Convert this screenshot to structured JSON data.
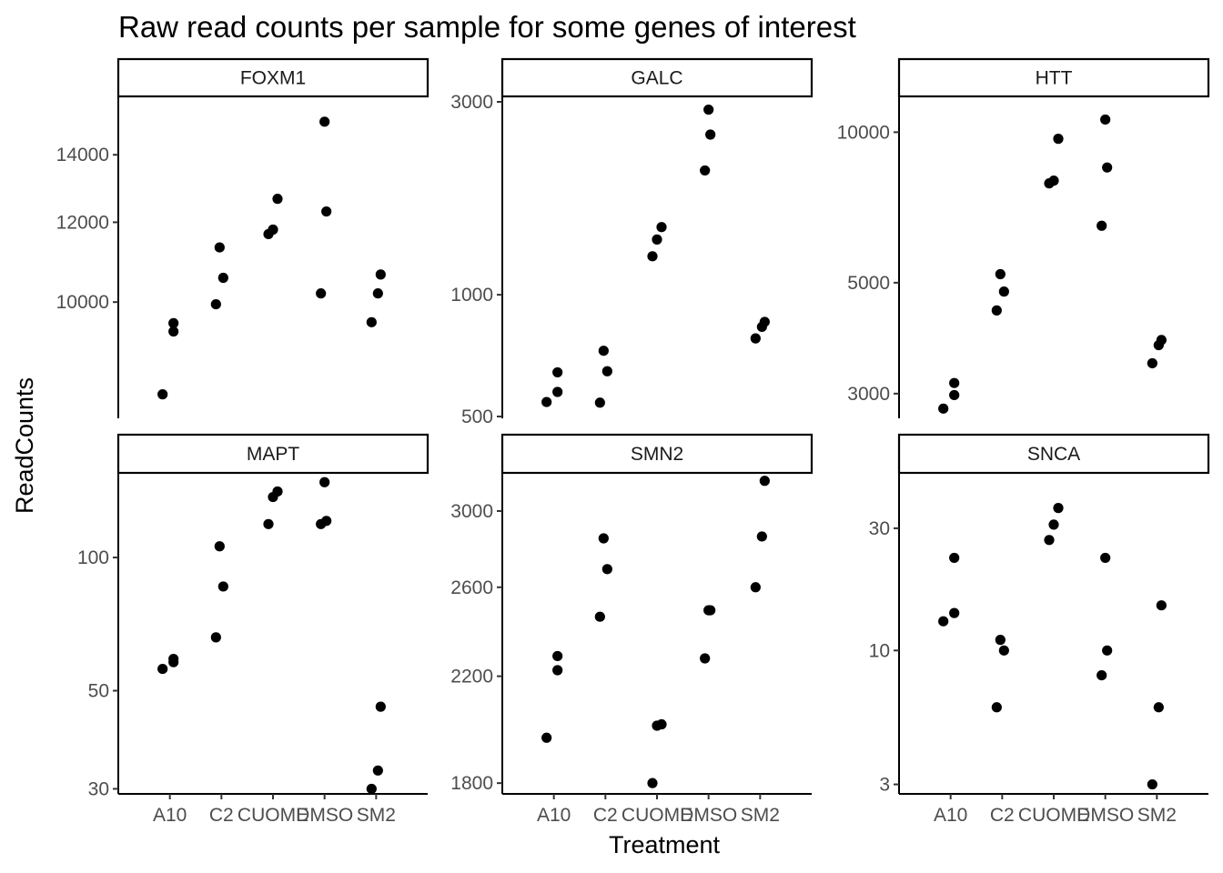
{
  "chart_data": {
    "type": "scatter",
    "title": "Raw read counts per sample for some genes of interest",
    "xlabel": "Treatment",
    "ylabel": "ReadCounts",
    "categories": [
      "A10",
      "C2",
      "CUOME",
      "DMSO",
      "SM2"
    ],
    "grid": false,
    "y_scale": "log",
    "point_color": "#000000",
    "panels": [
      {
        "gene": "FOXM1",
        "ylim": [
          7700,
          15800
        ],
        "yticks": [
          10000,
          12000,
          14000
        ],
        "ytick_labels": [
          "10000",
          "12000",
          "14000"
        ],
        "series": [
          {
            "category": "A10",
            "values": [
              8100,
              9350,
              9530
            ]
          },
          {
            "category": "C2",
            "values": [
              9950,
              10570,
              11330
            ]
          },
          {
            "category": "CUOME",
            "values": [
              11680,
              11800,
              12660
            ]
          },
          {
            "category": "DMSO",
            "values": [
              10200,
              12300,
              15100
            ]
          },
          {
            "category": "SM2",
            "values": [
              9550,
              10200,
              10650
            ]
          }
        ]
      },
      {
        "gene": "GALC",
        "ylim": [
          500,
          3000
        ],
        "yticks": [
          500,
          1000,
          3000
        ],
        "ytick_labels": [
          "500",
          "1000",
          "3000"
        ],
        "series": [
          {
            "category": "A10",
            "values": [
              543,
              575,
              643
            ]
          },
          {
            "category": "C2",
            "values": [
              541,
              647,
              727
            ]
          },
          {
            "category": "CUOME",
            "values": [
              1245,
              1370,
              1470
            ]
          },
          {
            "category": "DMSO",
            "values": [
              2030,
              2490,
              2870
            ]
          },
          {
            "category": "SM2",
            "values": [
              780,
              833,
              857
            ]
          }
        ]
      },
      {
        "gene": "HTT",
        "ylim": [
          2700,
          11500
        ],
        "yticks": [
          3000,
          5000,
          10000
        ],
        "ytick_labels": [
          "3000",
          "5000",
          "10000"
        ],
        "series": [
          {
            "category": "A10",
            "values": [
              2800,
              2980,
              3150
            ]
          },
          {
            "category": "C2",
            "values": [
              4400,
              4800,
              5200
            ]
          },
          {
            "category": "CUOME",
            "values": [
              7900,
              8000,
              9700
            ]
          },
          {
            "category": "DMSO",
            "values": [
              6500,
              8500,
              10600
            ]
          },
          {
            "category": "SM2",
            "values": [
              3450,
              3750,
              3840
            ]
          }
        ]
      },
      {
        "gene": "MAPT",
        "ylim": [
          29.5,
          151
        ],
        "yticks": [
          30,
          50,
          100
        ],
        "ytick_labels": [
          "30",
          "50",
          "100"
        ],
        "series": [
          {
            "category": "A10",
            "values": [
              56,
              58,
              59
            ]
          },
          {
            "category": "C2",
            "values": [
              66,
              86,
              106
            ]
          },
          {
            "category": "CUOME",
            "values": [
              119,
              137,
              141
            ]
          },
          {
            "category": "DMSO",
            "values": [
              119,
              121,
              148
            ]
          },
          {
            "category": "SM2",
            "values": [
              30,
              33,
              46
            ]
          }
        ]
      },
      {
        "gene": "SMN2",
        "ylim": [
          1770,
          3190
        ],
        "yticks": [
          1800,
          2200,
          2600,
          3000
        ],
        "ytick_labels": [
          "1800",
          "2200",
          "2600",
          "3000"
        ],
        "series": [
          {
            "category": "A10",
            "values": [
              1960,
              2225,
              2285
            ]
          },
          {
            "category": "C2",
            "values": [
              2460,
              2690,
              2850
            ]
          },
          {
            "category": "CUOME",
            "values": [
              1800,
              2005,
              2010
            ]
          },
          {
            "category": "DMSO",
            "values": [
              2275,
              2490,
              2490
            ]
          },
          {
            "category": "SM2",
            "values": [
              2600,
              2860,
              3175
            ]
          }
        ]
      },
      {
        "gene": "SNCA",
        "ylim": [
          2.8,
          47
        ],
        "yticks": [
          3,
          10,
          30
        ],
        "ytick_labels": [
          "3",
          "10",
          "30"
        ],
        "series": [
          {
            "category": "A10",
            "values": [
              13,
              14,
              23
            ]
          },
          {
            "category": "C2",
            "values": [
              6,
              10,
              11
            ]
          },
          {
            "category": "CUOME",
            "values": [
              27,
              31,
              36
            ]
          },
          {
            "category": "DMSO",
            "values": [
              8,
              10,
              23
            ]
          },
          {
            "category": "SM2",
            "values": [
              3,
              6,
              15
            ]
          }
        ]
      }
    ]
  }
}
